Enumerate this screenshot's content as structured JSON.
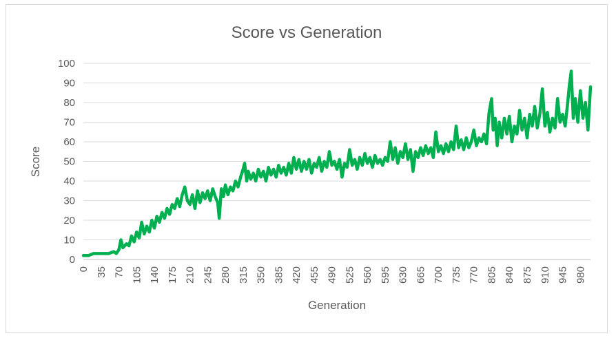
{
  "chart_data": {
    "type": "line",
    "title": "Score vs Generation",
    "xlabel": "Generation",
    "ylabel": "Score",
    "ylim": [
      0,
      100
    ],
    "yticks": [
      0,
      10,
      20,
      30,
      40,
      50,
      60,
      70,
      80,
      90,
      100
    ],
    "xlim": [
      0,
      1000
    ],
    "xticks": [
      0,
      35,
      70,
      105,
      140,
      175,
      210,
      245,
      280,
      315,
      350,
      385,
      420,
      455,
      490,
      525,
      560,
      595,
      630,
      665,
      700,
      735,
      770,
      805,
      840,
      875,
      910,
      945,
      980
    ],
    "grid": true,
    "legend": "none",
    "series": [
      {
        "name": "Score",
        "color": "#00b050",
        "points": [
          [
            0,
            2
          ],
          [
            10,
            2
          ],
          [
            20,
            3
          ],
          [
            30,
            3
          ],
          [
            40,
            3
          ],
          [
            50,
            3
          ],
          [
            60,
            4
          ],
          [
            65,
            3
          ],
          [
            70,
            5
          ],
          [
            74,
            10
          ],
          [
            78,
            6
          ],
          [
            85,
            8
          ],
          [
            90,
            7
          ],
          [
            95,
            12
          ],
          [
            100,
            9
          ],
          [
            105,
            14
          ],
          [
            110,
            11
          ],
          [
            115,
            19
          ],
          [
            120,
            13
          ],
          [
            125,
            17
          ],
          [
            130,
            14
          ],
          [
            135,
            20
          ],
          [
            140,
            16
          ],
          [
            145,
            22
          ],
          [
            150,
            19
          ],
          [
            155,
            24
          ],
          [
            160,
            21
          ],
          [
            165,
            26
          ],
          [
            170,
            23
          ],
          [
            175,
            28
          ],
          [
            180,
            26
          ],
          [
            185,
            31
          ],
          [
            190,
            27
          ],
          [
            195,
            33
          ],
          [
            200,
            37
          ],
          [
            205,
            30
          ],
          [
            210,
            28
          ],
          [
            215,
            33
          ],
          [
            220,
            26
          ],
          [
            225,
            35
          ],
          [
            230,
            29
          ],
          [
            235,
            34
          ],
          [
            240,
            31
          ],
          [
            245,
            35
          ],
          [
            250,
            30
          ],
          [
            255,
            36
          ],
          [
            260,
            32
          ],
          [
            265,
            29
          ],
          [
            268,
            21
          ],
          [
            272,
            36
          ],
          [
            276,
            32
          ],
          [
            280,
            38
          ],
          [
            285,
            33
          ],
          [
            290,
            37
          ],
          [
            295,
            35
          ],
          [
            300,
            40
          ],
          [
            305,
            37
          ],
          [
            310,
            42
          ],
          [
            315,
            46
          ],
          [
            318,
            49
          ],
          [
            322,
            40
          ],
          [
            325,
            45
          ],
          [
            330,
            41
          ],
          [
            335,
            44
          ],
          [
            340,
            40
          ],
          [
            345,
            46
          ],
          [
            350,
            42
          ],
          [
            355,
            45
          ],
          [
            360,
            40
          ],
          [
            365,
            47
          ],
          [
            370,
            43
          ],
          [
            375,
            46
          ],
          [
            380,
            42
          ],
          [
            385,
            48
          ],
          [
            390,
            44
          ],
          [
            395,
            47
          ],
          [
            400,
            43
          ],
          [
            405,
            49
          ],
          [
            410,
            44
          ],
          [
            415,
            52
          ],
          [
            420,
            46
          ],
          [
            425,
            51
          ],
          [
            430,
            45
          ],
          [
            435,
            50
          ],
          [
            440,
            46
          ],
          [
            445,
            51
          ],
          [
            450,
            44
          ],
          [
            455,
            49
          ],
          [
            460,
            47
          ],
          [
            465,
            52
          ],
          [
            470,
            45
          ],
          [
            475,
            50
          ],
          [
            480,
            47
          ],
          [
            485,
            55
          ],
          [
            490,
            48
          ],
          [
            495,
            50
          ],
          [
            500,
            46
          ],
          [
            505,
            51
          ],
          [
            510,
            42
          ],
          [
            515,
            49
          ],
          [
            520,
            47
          ],
          [
            525,
            56
          ],
          [
            530,
            48
          ],
          [
            535,
            51
          ],
          [
            540,
            46
          ],
          [
            545,
            52
          ],
          [
            550,
            48
          ],
          [
            555,
            54
          ],
          [
            560,
            49
          ],
          [
            565,
            52
          ],
          [
            570,
            47
          ],
          [
            575,
            53
          ],
          [
            580,
            49
          ],
          [
            585,
            51
          ],
          [
            590,
            48
          ],
          [
            595,
            52
          ],
          [
            600,
            50
          ],
          [
            605,
            60
          ],
          [
            610,
            51
          ],
          [
            615,
            57
          ],
          [
            620,
            49
          ],
          [
            625,
            55
          ],
          [
            630,
            52
          ],
          [
            635,
            59
          ],
          [
            640,
            51
          ],
          [
            645,
            56
          ],
          [
            650,
            45
          ],
          [
            655,
            55
          ],
          [
            660,
            52
          ],
          [
            665,
            57
          ],
          [
            670,
            53
          ],
          [
            675,
            58
          ],
          [
            680,
            54
          ],
          [
            685,
            57
          ],
          [
            690,
            52
          ],
          [
            695,
            65
          ],
          [
            700,
            55
          ],
          [
            705,
            58
          ],
          [
            710,
            54
          ],
          [
            715,
            59
          ],
          [
            720,
            55
          ],
          [
            725,
            60
          ],
          [
            730,
            56
          ],
          [
            735,
            68
          ],
          [
            740,
            57
          ],
          [
            745,
            61
          ],
          [
            750,
            56
          ],
          [
            755,
            62
          ],
          [
            760,
            57
          ],
          [
            765,
            60
          ],
          [
            770,
            66
          ],
          [
            775,
            58
          ],
          [
            780,
            62
          ],
          [
            785,
            60
          ],
          [
            790,
            64
          ],
          [
            795,
            59
          ],
          [
            800,
            75
          ],
          [
            805,
            82
          ],
          [
            808,
            66
          ],
          [
            812,
            72
          ],
          [
            816,
            58
          ],
          [
            820,
            70
          ],
          [
            825,
            62
          ],
          [
            830,
            72
          ],
          [
            835,
            64
          ],
          [
            840,
            73
          ],
          [
            845,
            60
          ],
          [
            850,
            68
          ],
          [
            855,
            64
          ],
          [
            860,
            76
          ],
          [
            865,
            66
          ],
          [
            870,
            72
          ],
          [
            875,
            62
          ],
          [
            880,
            74
          ],
          [
            885,
            68
          ],
          [
            890,
            78
          ],
          [
            895,
            67
          ],
          [
            900,
            74
          ],
          [
            905,
            87
          ],
          [
            910,
            68
          ],
          [
            915,
            75
          ],
          [
            920,
            65
          ],
          [
            925,
            72
          ],
          [
            930,
            67
          ],
          [
            935,
            82
          ],
          [
            940,
            70
          ],
          [
            945,
            74
          ],
          [
            950,
            68
          ],
          [
            955,
            80
          ],
          [
            958,
            88
          ],
          [
            962,
            96
          ],
          [
            966,
            72
          ],
          [
            970,
            82
          ],
          [
            975,
            70
          ],
          [
            980,
            86
          ],
          [
            985,
            72
          ],
          [
            990,
            80
          ],
          [
            995,
            66
          ],
          [
            1000,
            88
          ]
        ]
      }
    ]
  }
}
